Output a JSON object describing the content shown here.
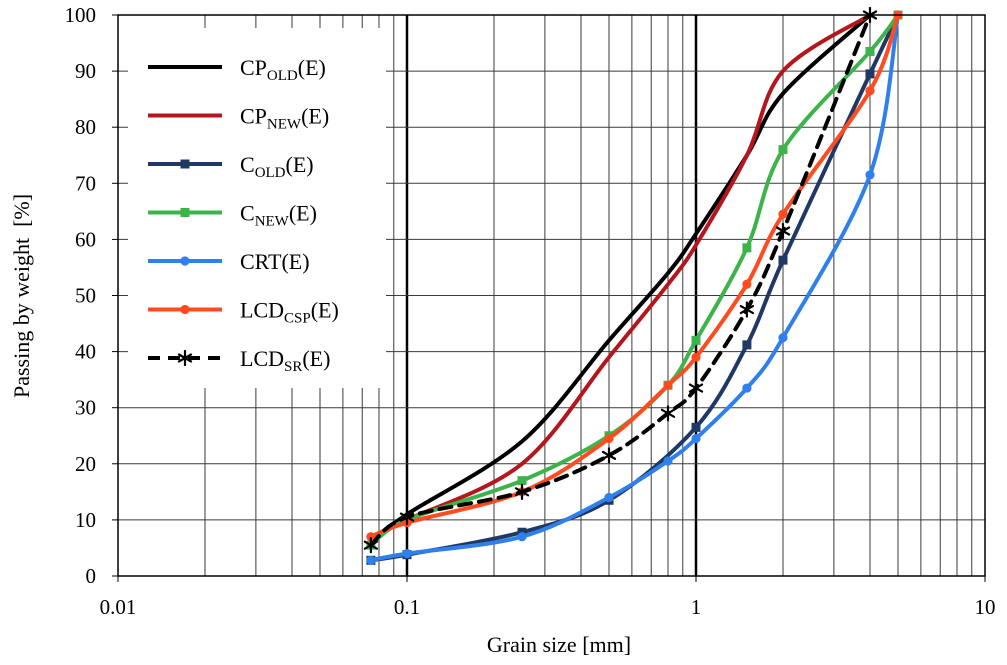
{
  "chart_data": {
    "type": "line",
    "xscale": "log",
    "xlabel": "Grain size [mm]",
    "ylabel": "Passing by weight  [%]",
    "xlim": [
      0.01,
      10
    ],
    "ylim": [
      0,
      100
    ],
    "x_ticks": [
      "0.01",
      "0.1",
      "1",
      "10"
    ],
    "y_ticks": [
      0,
      10,
      20,
      30,
      40,
      50,
      60,
      70,
      80,
      90,
      100
    ],
    "grid": true,
    "legend_position": "top-left",
    "series": [
      {
        "name": {
          "base": "CP",
          "sub": "OLD",
          "tail": "(E)"
        },
        "color": "#000000",
        "line": "solid",
        "marker": "none",
        "x": [
          0.075,
          0.1,
          0.25,
          0.5,
          0.8,
          1,
          1.5,
          2,
          4
        ],
        "y": [
          6,
          11,
          24,
          42,
          54,
          61,
          75,
          86,
          100
        ]
      },
      {
        "name": {
          "base": "CP",
          "sub": "NEW",
          "tail": "(E)"
        },
        "color": "#B5161E",
        "line": "solid",
        "marker": "none",
        "x": [
          0.075,
          0.1,
          0.25,
          0.5,
          0.8,
          1,
          1.5,
          2,
          4
        ],
        "y": [
          7,
          10,
          20,
          39,
          52,
          59,
          75,
          90,
          100
        ]
      },
      {
        "name": {
          "base": "C",
          "sub": "OLD",
          "tail": "(E)"
        },
        "color": "#1F3864",
        "line": "solid",
        "marker": "square",
        "x": [
          0.075,
          0.1,
          0.25,
          0.5,
          1,
          1.5,
          2,
          4,
          5
        ],
        "y": [
          2.8,
          3.8,
          7.8,
          13.5,
          26.5,
          41.2,
          56.3,
          89.5,
          100
        ]
      },
      {
        "name": {
          "base": "C",
          "sub": "NEW",
          "tail": "(E)"
        },
        "color": "#3CB44B",
        "line": "solid",
        "marker": "square",
        "x": [
          0.075,
          0.1,
          0.25,
          0.5,
          0.8,
          1,
          1.5,
          2,
          4,
          5
        ],
        "y": [
          5.5,
          10,
          17,
          25,
          34,
          42,
          58.5,
          76,
          93.5,
          100
        ]
      },
      {
        "name": {
          "base": "CRT",
          "sub": "",
          "tail": "(E)"
        },
        "color": "#2F80ED",
        "line": "solid",
        "marker": "circle",
        "x": [
          0.075,
          0.1,
          0.25,
          0.5,
          0.8,
          1,
          1.5,
          2,
          4,
          5
        ],
        "y": [
          2.8,
          4,
          7,
          14,
          20.5,
          24.5,
          33.5,
          42.5,
          71.5,
          100
        ]
      },
      {
        "name": {
          "base": "LCD",
          "sub": "CSP",
          "tail": "(E)"
        },
        "color": "#FF4B1F",
        "line": "solid",
        "marker": "circle",
        "x": [
          0.075,
          0.1,
          0.25,
          0.5,
          0.8,
          1,
          1.5,
          2,
          4,
          5
        ],
        "y": [
          7,
          9.5,
          15,
          24.5,
          34,
          39,
          52,
          64.5,
          86.5,
          100
        ]
      },
      {
        "name": {
          "base": "LCD",
          "sub": "SR",
          "tail": "(E)"
        },
        "color": "#000000",
        "line": "dashed",
        "marker": "asterisk",
        "x": [
          0.075,
          0.1,
          0.25,
          0.5,
          0.8,
          1,
          1.5,
          2,
          4
        ],
        "y": [
          5.5,
          10.5,
          15,
          21.5,
          29,
          33.5,
          47.5,
          61.5,
          100
        ]
      }
    ]
  }
}
